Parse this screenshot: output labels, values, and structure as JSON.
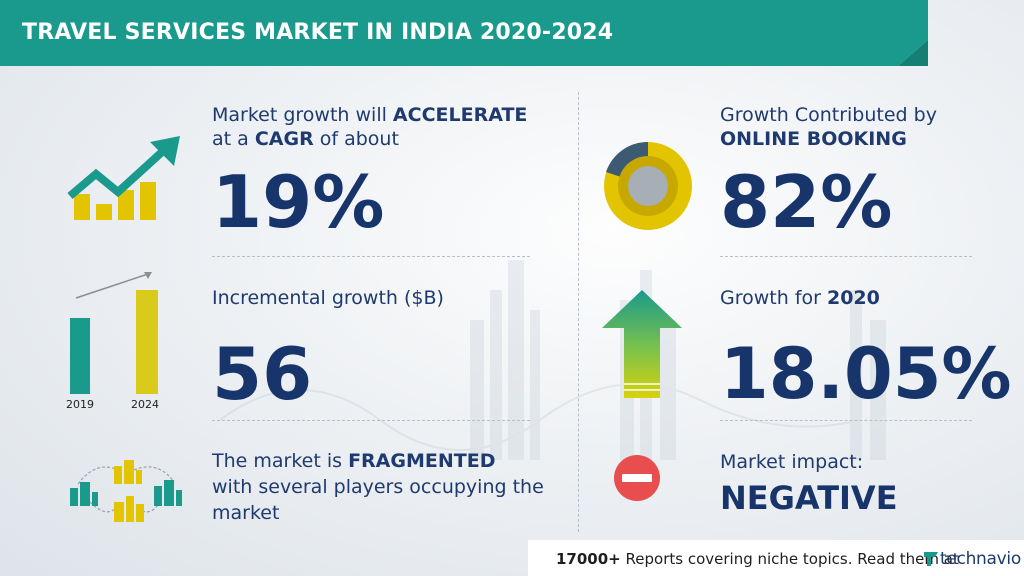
{
  "header": {
    "title": "TRAVEL SERVICES MARKET IN INDIA 2020-2024"
  },
  "left": {
    "cagr": {
      "line1_pre": "Market growth will ",
      "line1_bold": "ACCELERATE",
      "line2_pre": "at a ",
      "line2_bold": "CAGR",
      "line2_post": " of about",
      "value": "19%"
    },
    "incremental": {
      "label": "Incremental growth ($B)",
      "value": "56",
      "year_start": "2019",
      "year_end": "2024"
    },
    "fragmented": {
      "line1_pre": "The market is ",
      "line1_bold": "FRAGMENTED",
      "line2": "with several players occupying the",
      "line3": "market"
    }
  },
  "right": {
    "online": {
      "line1": "Growth Contributed by",
      "line2_bold": "ONLINE BOOKING",
      "value": "82%"
    },
    "growth2020": {
      "label_pre": "Growth for ",
      "label_bold": "2020",
      "value": "18.05%"
    },
    "impact": {
      "label": "Market impact:",
      "value": "NEGATIVE"
    }
  },
  "footer": {
    "count": "17000+",
    "text": " Reports covering niche topics. Read them at",
    "logo": "technavio"
  },
  "colors": {
    "teal": "#1a9a8c",
    "yellow": "#e2c400",
    "navy": "#17346b",
    "red": "#e94e4e",
    "slate": "#3d5a73"
  },
  "icons": [
    "growth-chart-icon",
    "bar-compare-icon",
    "network-buildings-icon",
    "donut-icon",
    "up-arrow-icon",
    "minus-circle-icon",
    "technavio-logo-icon"
  ]
}
